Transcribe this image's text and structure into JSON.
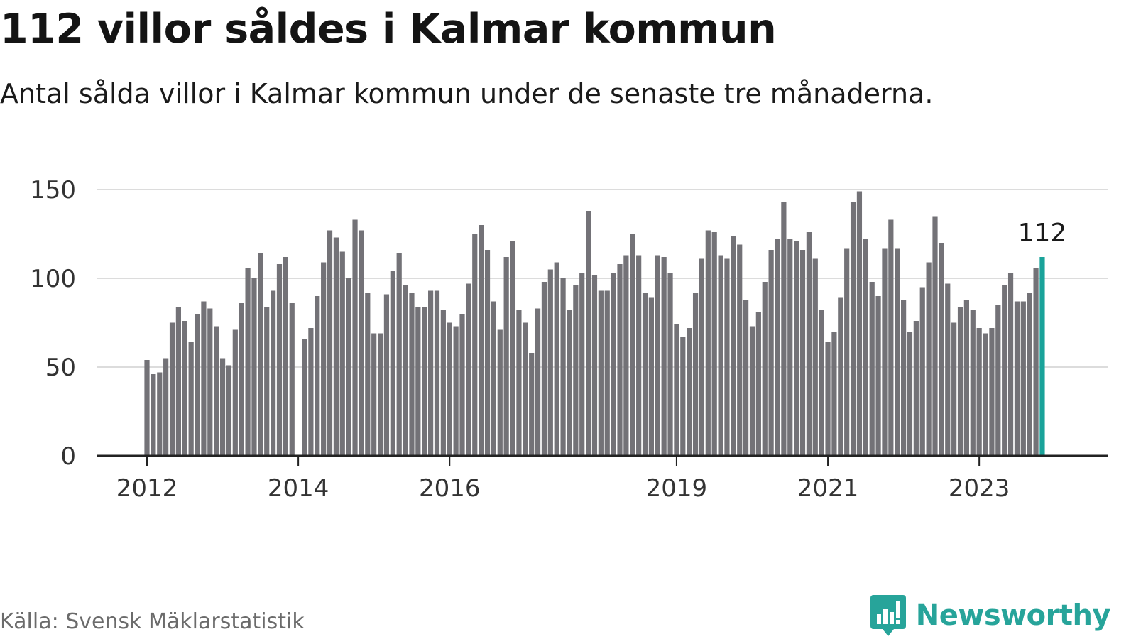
{
  "header": {
    "title": "112 villor såldes i Kalmar kommun",
    "subtitle": "Antal sålda villor i Kalmar kommun under de senaste tre månaderna."
  },
  "footer": {
    "source": "Källa: Svensk Mäklarstatistik",
    "brand": "Newsworthy"
  },
  "colors": {
    "bar": "#737277",
    "highlight": "#1aa39a",
    "grid": "#dcdcdc",
    "axis": "#222222",
    "text": "#333333",
    "brand": "#27a49a"
  },
  "chart_data": {
    "type": "bar",
    "title": "112 villor såldes i Kalmar kommun",
    "subtitle": "Antal sålda villor i Kalmar kommun under de senaste tre månaderna.",
    "xlabel": "",
    "ylabel": "",
    "ylim": [
      0,
      150
    ],
    "yticks": [
      0,
      50,
      100,
      150
    ],
    "grid": true,
    "start": "2012-01",
    "xtick_labels": [
      {
        "label": "2012",
        "index": 0
      },
      {
        "label": "2014",
        "index": 24
      },
      {
        "label": "2016",
        "index": 48
      },
      {
        "label": "2019",
        "index": 84
      },
      {
        "label": "2021",
        "index": 108
      },
      {
        "label": "2023",
        "index": 132
      }
    ],
    "annotation": {
      "label": "112",
      "index": 142
    },
    "values": [
      54,
      46,
      47,
      55,
      75,
      84,
      76,
      64,
      80,
      87,
      83,
      73,
      55,
      51,
      71,
      86,
      106,
      100,
      114,
      84,
      93,
      108,
      112,
      86,
      0,
      66,
      72,
      90,
      109,
      127,
      123,
      115,
      100,
      133,
      127,
      92,
      69,
      69,
      91,
      104,
      114,
      96,
      92,
      84,
      84,
      93,
      93,
      82,
      75,
      73,
      80,
      97,
      125,
      130,
      116,
      87,
      71,
      112,
      121,
      82,
      75,
      58,
      83,
      98,
      105,
      109,
      100,
      82,
      96,
      103,
      138,
      102,
      93,
      93,
      103,
      108,
      113,
      125,
      113,
      92,
      89,
      113,
      112,
      103,
      74,
      67,
      72,
      92,
      111,
      127,
      126,
      113,
      111,
      124,
      119,
      88,
      73,
      81,
      98,
      116,
      122,
      143,
      122,
      121,
      116,
      126,
      111,
      82,
      64,
      70,
      89,
      117,
      143,
      149,
      122,
      98,
      90,
      117,
      133,
      117,
      88,
      70,
      76,
      95,
      109,
      135,
      120,
      97,
      75,
      84,
      88,
      82,
      72,
      69,
      72,
      85,
      96,
      103,
      87,
      87,
      92,
      106,
      112
    ]
  }
}
